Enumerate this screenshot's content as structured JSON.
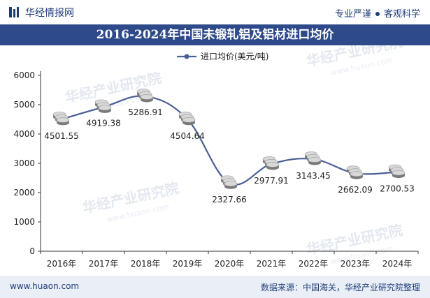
{
  "header": {
    "brand": "华经情报网",
    "slogan_left": "专业严谨",
    "slogan_right": "客观科学"
  },
  "title": "2016-2024年中国未锻轧铝及铝材进口均价",
  "footer": {
    "url": "www.huaon.com",
    "source": "数据来源：中国海关，华经产业研究院整理"
  },
  "watermark": "华经产业研究院",
  "watermark_url": "www.huaon.com",
  "colors": {
    "title_bg": "#2e4a8a",
    "line": "#4a5f95",
    "brand": "#1f3c78",
    "footer_bg": "#e9eef7"
  },
  "chart_data": {
    "type": "line",
    "categories": [
      "2016年",
      "2017年",
      "2018年",
      "2019年",
      "2020年",
      "2021年",
      "2022年",
      "2023年",
      "2024年"
    ],
    "series": [
      {
        "name": "进口均价(美元/吨)",
        "values": [
          4501.55,
          4919.38,
          5286.91,
          4504.64,
          2327.66,
          2977.91,
          3143.45,
          2662.09,
          2700.53
        ],
        "labels": [
          "4501.55",
          "4919.38",
          "5286.91",
          "4504.64",
          "2327.66",
          "2977.91",
          "3143.45",
          "2662.09",
          "2700.53"
        ]
      }
    ],
    "yticks": [
      "0",
      "1000",
      "2000",
      "3000",
      "4000",
      "5000",
      "6000"
    ],
    "ylim": [
      0,
      6000
    ],
    "grid": false,
    "legend_position": "top-center"
  }
}
